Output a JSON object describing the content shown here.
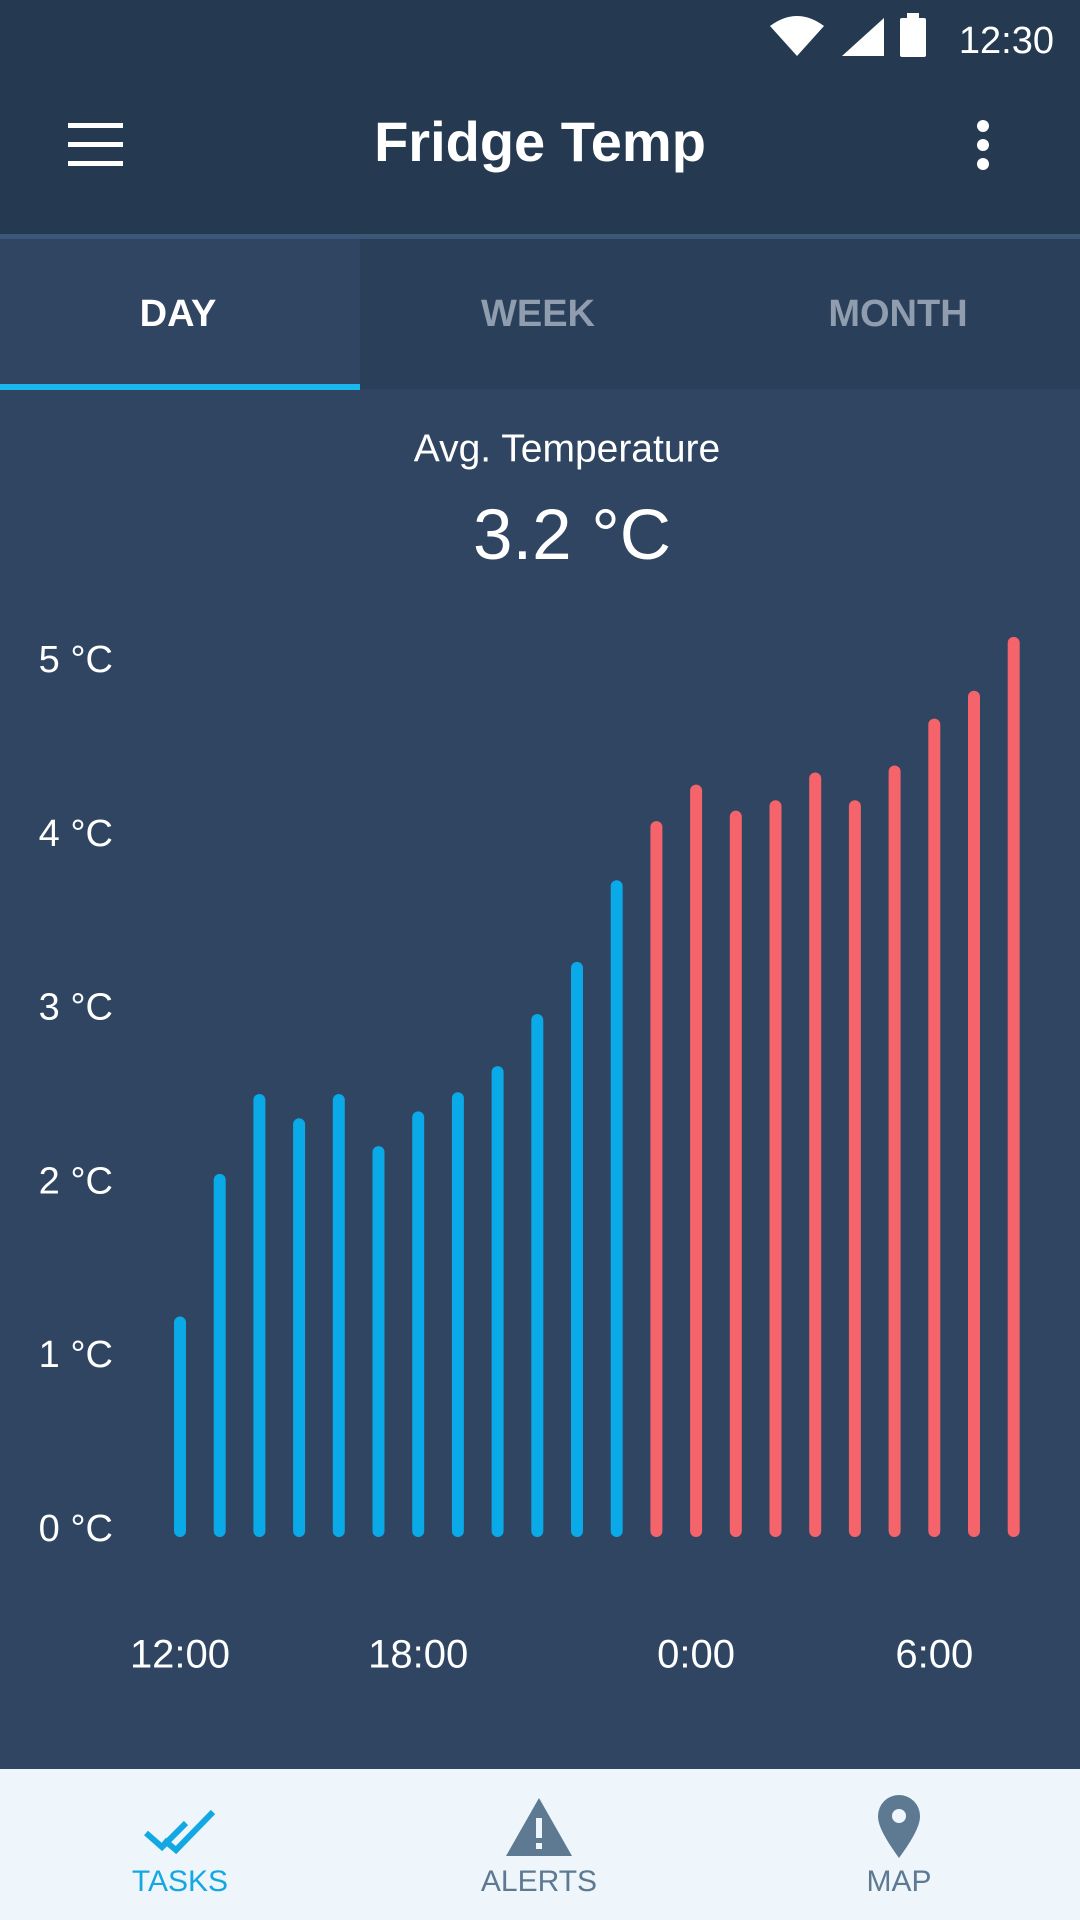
{
  "status_bar": {
    "time": "12:30"
  },
  "app_bar": {
    "title": "Fridge Temp"
  },
  "tabs": [
    "DAY",
    "WEEK",
    "MONTH"
  ],
  "summary": {
    "label": "Avg. Temperature",
    "value": "3.2 °C"
  },
  "chart_data": {
    "type": "bar",
    "categories": [
      "12:00",
      null,
      null,
      null,
      null,
      null,
      "18:00",
      null,
      null,
      null,
      null,
      null,
      null,
      "0:00",
      null,
      null,
      null,
      null,
      null,
      "6:00",
      null,
      null
    ],
    "values": [
      1.2,
      2.02,
      2.48,
      2.34,
      2.48,
      2.18,
      2.38,
      2.49,
      2.64,
      2.94,
      3.24,
      3.71,
      4.05,
      4.26,
      4.11,
      4.17,
      4.33,
      4.17,
      4.37,
      4.64,
      4.8,
      5.11
    ],
    "colors": [
      "#0aa9e8",
      "#0aa9e8",
      "#0aa9e8",
      "#0aa9e8",
      "#0aa9e8",
      "#0aa9e8",
      "#0aa9e8",
      "#0aa9e8",
      "#0aa9e8",
      "#0aa9e8",
      "#0aa9e8",
      "#0aa9e8",
      "#f4646a",
      "#f4646a",
      "#f4646a",
      "#f4646a",
      "#f4646a",
      "#f4646a",
      "#f4646a",
      "#f4646a",
      "#f4646a",
      "#f4646a"
    ],
    "ylim": [
      0,
      5.2
    ],
    "yticks": [
      {
        "value": 0,
        "label": "0 °C"
      },
      {
        "value": 1,
        "label": "1 °C"
      },
      {
        "value": 2,
        "label": "2 °C"
      },
      {
        "value": 3,
        "label": "3 °C"
      },
      {
        "value": 4,
        "label": "4 °C"
      },
      {
        "value": 5,
        "label": "5 °C"
      }
    ]
  },
  "bottom_nav": [
    "TASKS",
    "ALERTS",
    "MAP"
  ]
}
